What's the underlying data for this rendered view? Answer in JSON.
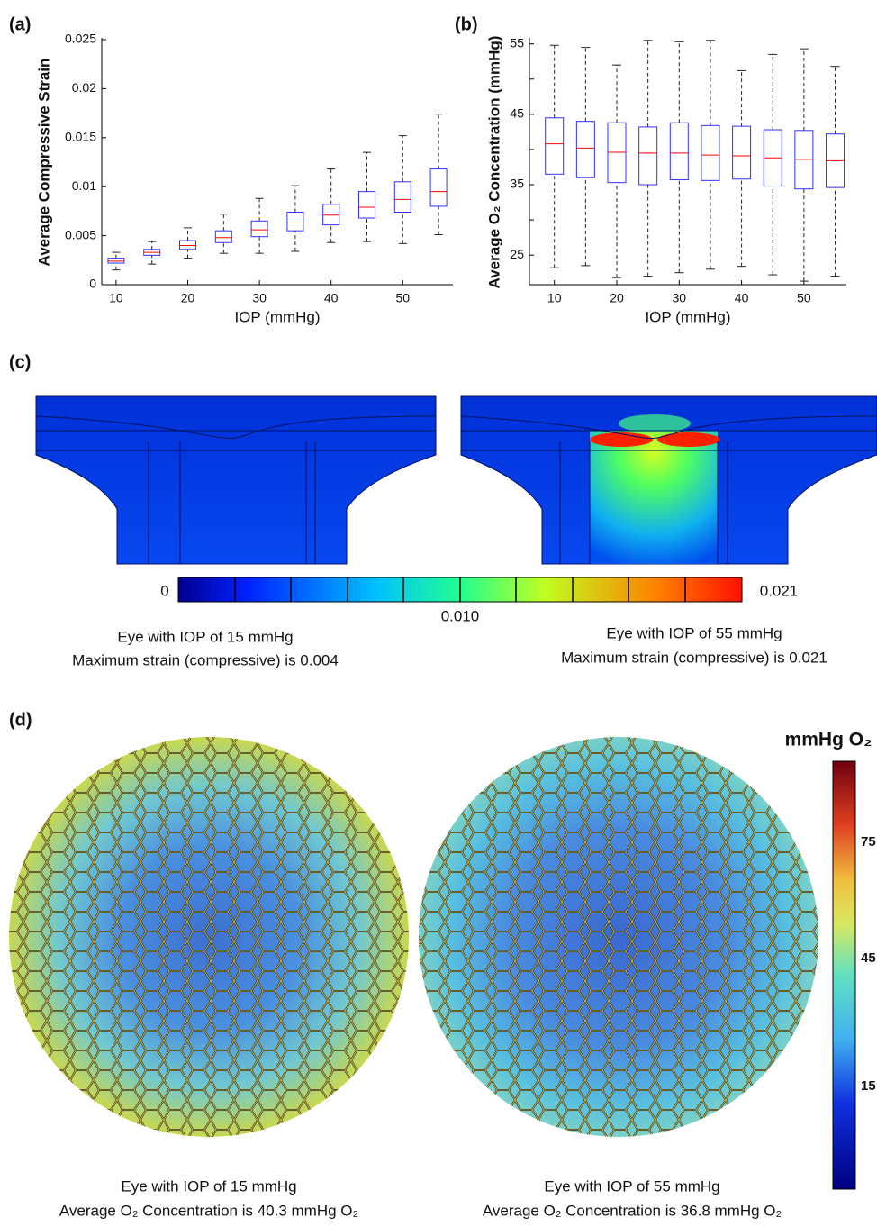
{
  "chart_data": [
    {
      "type": "box",
      "panel_label": "(a)",
      "x_label": "IOP (mmHg)",
      "y_label": "Average  Compressive Strain",
      "x": [
        10,
        15,
        20,
        25,
        30,
        35,
        40,
        45,
        50,
        55
      ],
      "whisker_low": [
        0.0015,
        0.0021,
        0.0027,
        0.0032,
        0.0032,
        0.0034,
        0.0043,
        0.0044,
        0.0042,
        0.0051
      ],
      "q1": [
        0.0022,
        0.003,
        0.0036,
        0.0043,
        0.0049,
        0.0055,
        0.0061,
        0.0068,
        0.0074,
        0.008
      ],
      "median": [
        0.0024,
        0.0033,
        0.004,
        0.0048,
        0.0056,
        0.0063,
        0.0071,
        0.0079,
        0.0087,
        0.0095
      ],
      "q3": [
        0.0027,
        0.0036,
        0.0045,
        0.0055,
        0.0065,
        0.0074,
        0.0082,
        0.0095,
        0.0105,
        0.0118
      ],
      "whisker_high": [
        0.0033,
        0.0044,
        0.0058,
        0.0072,
        0.0088,
        0.0101,
        0.0118,
        0.0135,
        0.0152,
        0.0174
      ],
      "box_color": "#3030ff",
      "median_color": "#ff0000",
      "xlim": [
        8,
        57
      ],
      "xticks": [
        10,
        20,
        30,
        40,
        50
      ],
      "ylim": [
        0,
        0.025
      ],
      "yticks": [
        0,
        0.005,
        0.01,
        0.015,
        0.02,
        0.025
      ]
    },
    {
      "type": "box",
      "panel_label": "(b)",
      "x_label": "IOP (mmHg)",
      "y_label": "Average O₂ Concentration (mmHg)",
      "x": [
        10,
        15,
        20,
        25,
        30,
        35,
        40,
        45,
        50,
        55
      ],
      "whisker_low": [
        23.2,
        23.5,
        21.8,
        22,
        22.5,
        23,
        23.4,
        22.2,
        21.3,
        22
      ],
      "q1": [
        36.5,
        36,
        35.3,
        35,
        35.7,
        35.6,
        35.8,
        34.8,
        34.4,
        34.6
      ],
      "median": [
        40.8,
        40.2,
        39.6,
        39.5,
        39.5,
        39.2,
        39.1,
        38.8,
        38.6,
        38.4
      ],
      "q3": [
        44.5,
        44,
        43.8,
        43.2,
        43.8,
        43.4,
        43.3,
        42.8,
        42.7,
        42.2
      ],
      "whisker_high": [
        54.8,
        54.5,
        52,
        55.5,
        55.3,
        55.5,
        51.2,
        53.5,
        54.3,
        51.8
      ],
      "box_color": "#3030ff",
      "median_color": "#ff0000",
      "xlim": [
        6,
        56.8
      ],
      "xticks": [
        10,
        20,
        30,
        40,
        50
      ],
      "ylim": [
        20.8,
        55.6
      ],
      "yticks": [
        25,
        35,
        45,
        55
      ],
      "minor_yticks": [
        30,
        40,
        50
      ]
    }
  ],
  "panel_c": {
    "label": "(c)",
    "colorbar_labels": [
      "0",
      "0.010",
      "0.021"
    ],
    "left_caption": [
      "Eye with IOP of 15 mmHg",
      "Maximum strain (compressive) is 0.004"
    ],
    "right_caption": [
      "Eye with IOP of 55 mmHg",
      "Maximum strain (compressive) is 0.021"
    ]
  },
  "panel_d": {
    "label": "(d)",
    "colorbar_title": "mmHg O₂",
    "colorbar_labels": [
      "75",
      "45",
      "15"
    ],
    "left_caption": [
      "Eye with IOP of 15 mmHg",
      "Average O₂ Concentration is 40.3 mmHg O₂"
    ],
    "right_caption": [
      "Eye with IOP of 55 mmHg",
      "Average O₂ Concentration is 36.8 mmHg O₂"
    ]
  }
}
